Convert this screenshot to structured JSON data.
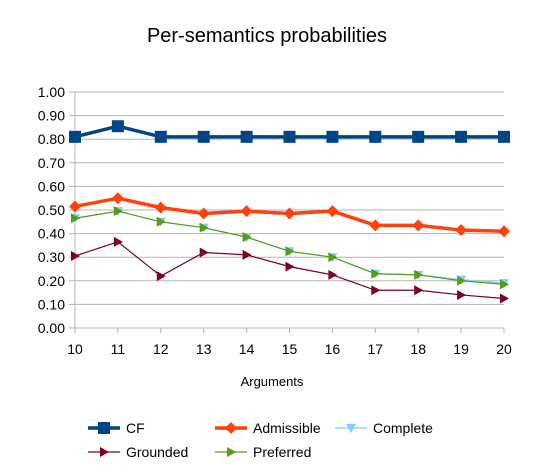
{
  "chart_data": {
    "type": "line",
    "title": "Per-semantics probabilities",
    "xlabel": "Arguments",
    "ylabel": "",
    "x": [
      10,
      11,
      12,
      13,
      14,
      15,
      16,
      17,
      18,
      19,
      20
    ],
    "xlim": [
      10,
      20
    ],
    "ylim": [
      0,
      1
    ],
    "yticks": [
      "0.00",
      "0.10",
      "0.20",
      "0.30",
      "0.40",
      "0.50",
      "0.60",
      "0.70",
      "0.80",
      "0.90",
      "1.00"
    ],
    "grid": true,
    "legend_position": "bottom",
    "series": [
      {
        "name": "CF",
        "color": "#004586",
        "marker": "square",
        "values": [
          0.81,
          0.855,
          0.81,
          0.81,
          0.81,
          0.81,
          0.81,
          0.81,
          0.81,
          0.81,
          0.81
        ]
      },
      {
        "name": "Admissible",
        "color": "#ff420e",
        "marker": "diamond",
        "values": [
          0.515,
          0.55,
          0.51,
          0.485,
          0.495,
          0.485,
          0.495,
          0.435,
          0.435,
          0.415,
          0.41
        ]
      },
      {
        "name": "Complete",
        "color": "#83caff",
        "marker": "triangle-down",
        "values": [
          0.465,
          0.495,
          0.45,
          0.425,
          0.385,
          0.325,
          0.3,
          0.23,
          0.225,
          0.205,
          0.19
        ]
      },
      {
        "name": "Grounded",
        "color": "#7e0021",
        "marker": "triangle-right",
        "values": [
          0.305,
          0.365,
          0.22,
          0.32,
          0.31,
          0.26,
          0.225,
          0.16,
          0.16,
          0.14,
          0.125
        ]
      },
      {
        "name": "Preferred",
        "color": "#579d1c",
        "marker": "triangle-right",
        "values": [
          0.465,
          0.495,
          0.45,
          0.425,
          0.385,
          0.325,
          0.3,
          0.23,
          0.225,
          0.2,
          0.185
        ]
      }
    ]
  }
}
